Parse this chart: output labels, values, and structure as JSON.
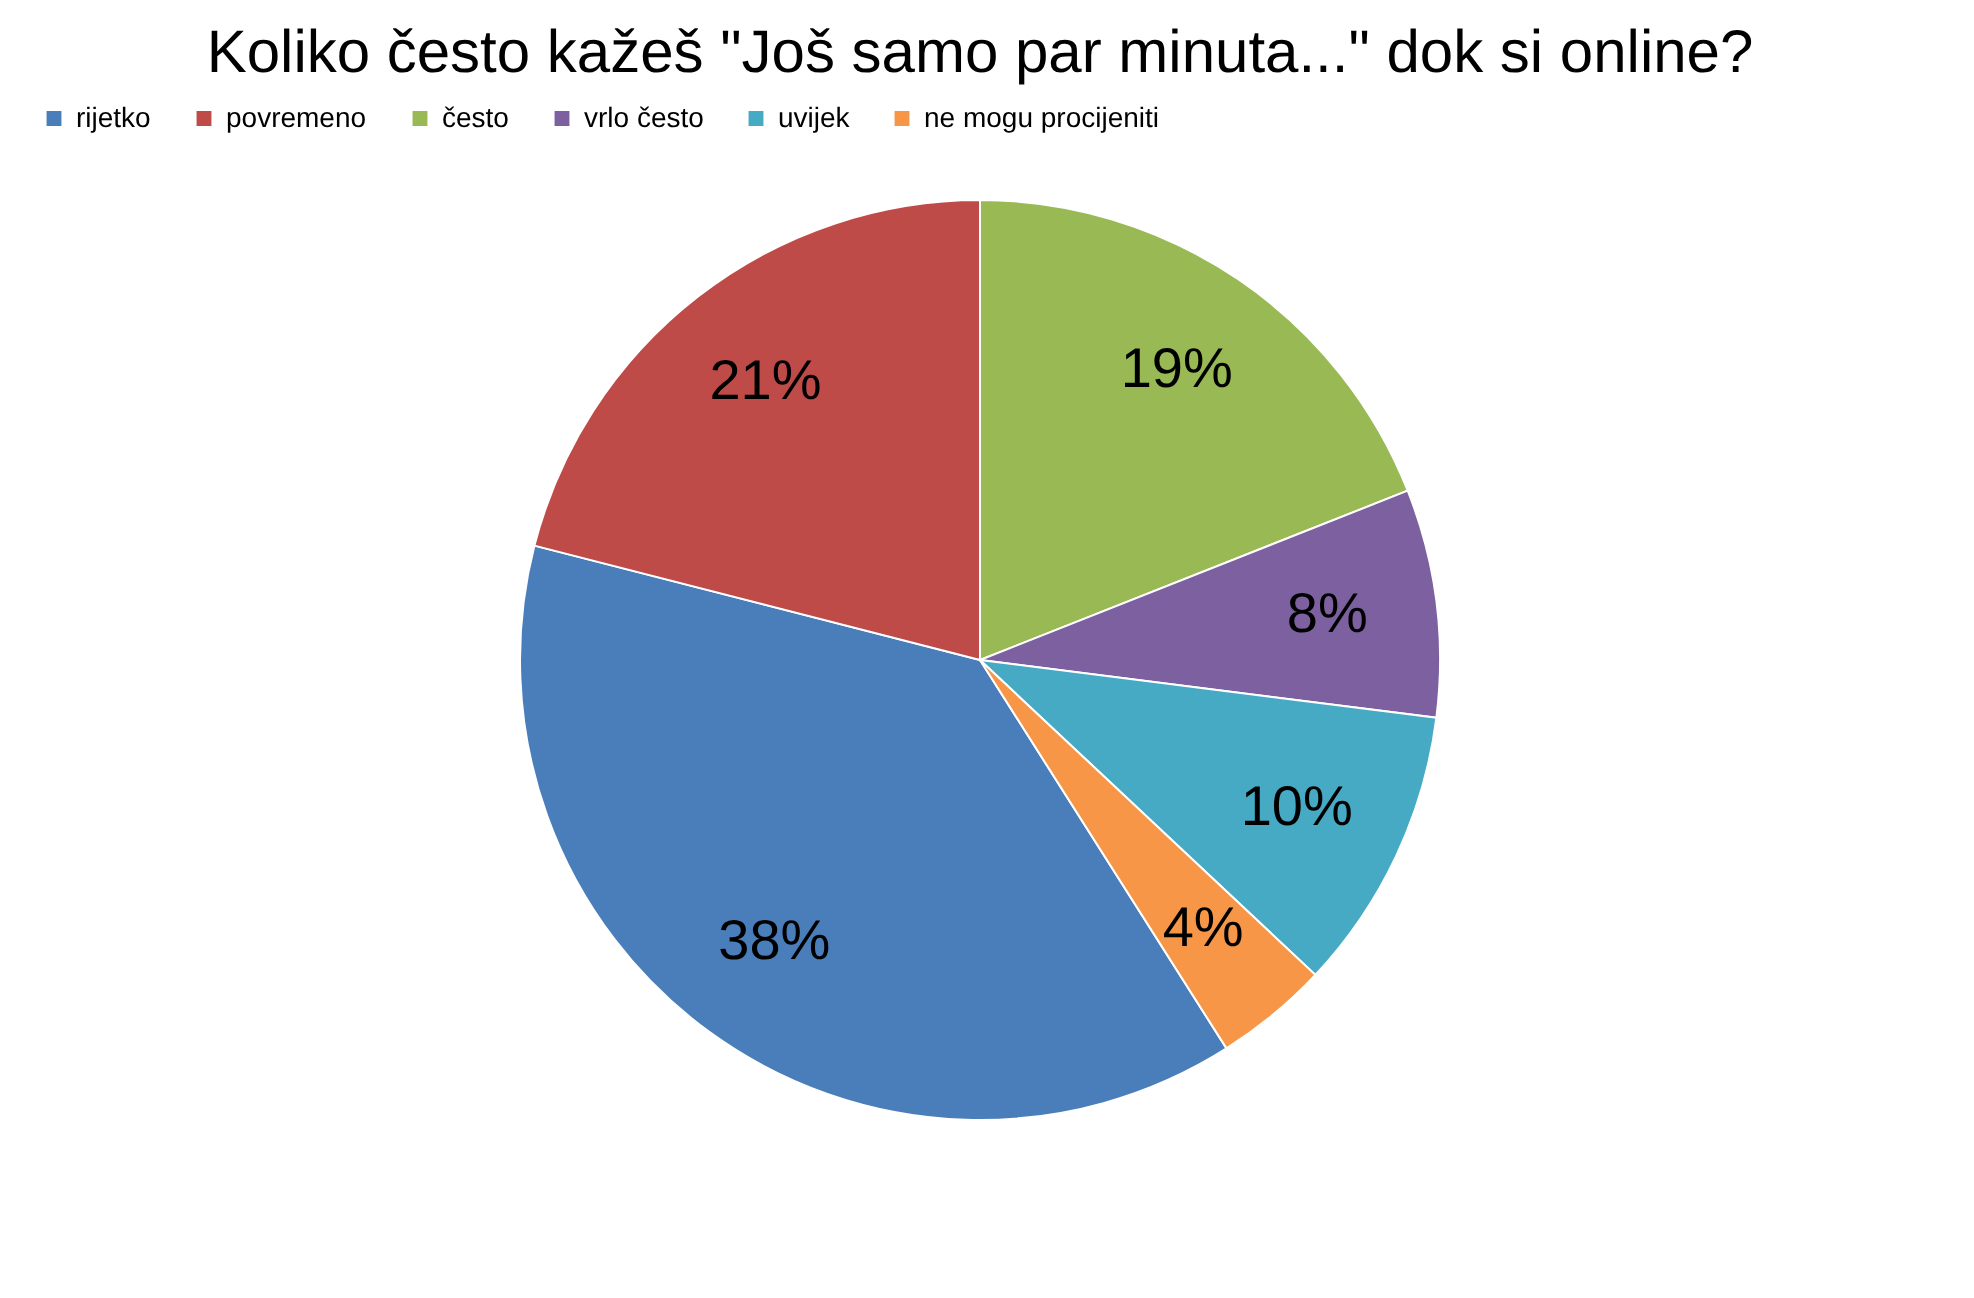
{
  "chart_data": {
    "type": "pie",
    "title": "Koliko često kažeš \"Još samo par minuta...\" dok si online?",
    "categories": [
      "rijetko",
      "povremeno",
      "često",
      "vrlo često",
      "uvijek",
      "ne mogu procijeniti"
    ],
    "values": [
      38,
      21,
      19,
      8,
      10,
      4
    ],
    "value_labels": [
      "38%",
      "21%",
      "19%",
      "8%",
      "10%",
      "4%"
    ],
    "colors": [
      "#4a7ebb",
      "#be4b48",
      "#98b954",
      "#7d60a0",
      "#46aac5",
      "#f79646"
    ],
    "legend": "top"
  }
}
